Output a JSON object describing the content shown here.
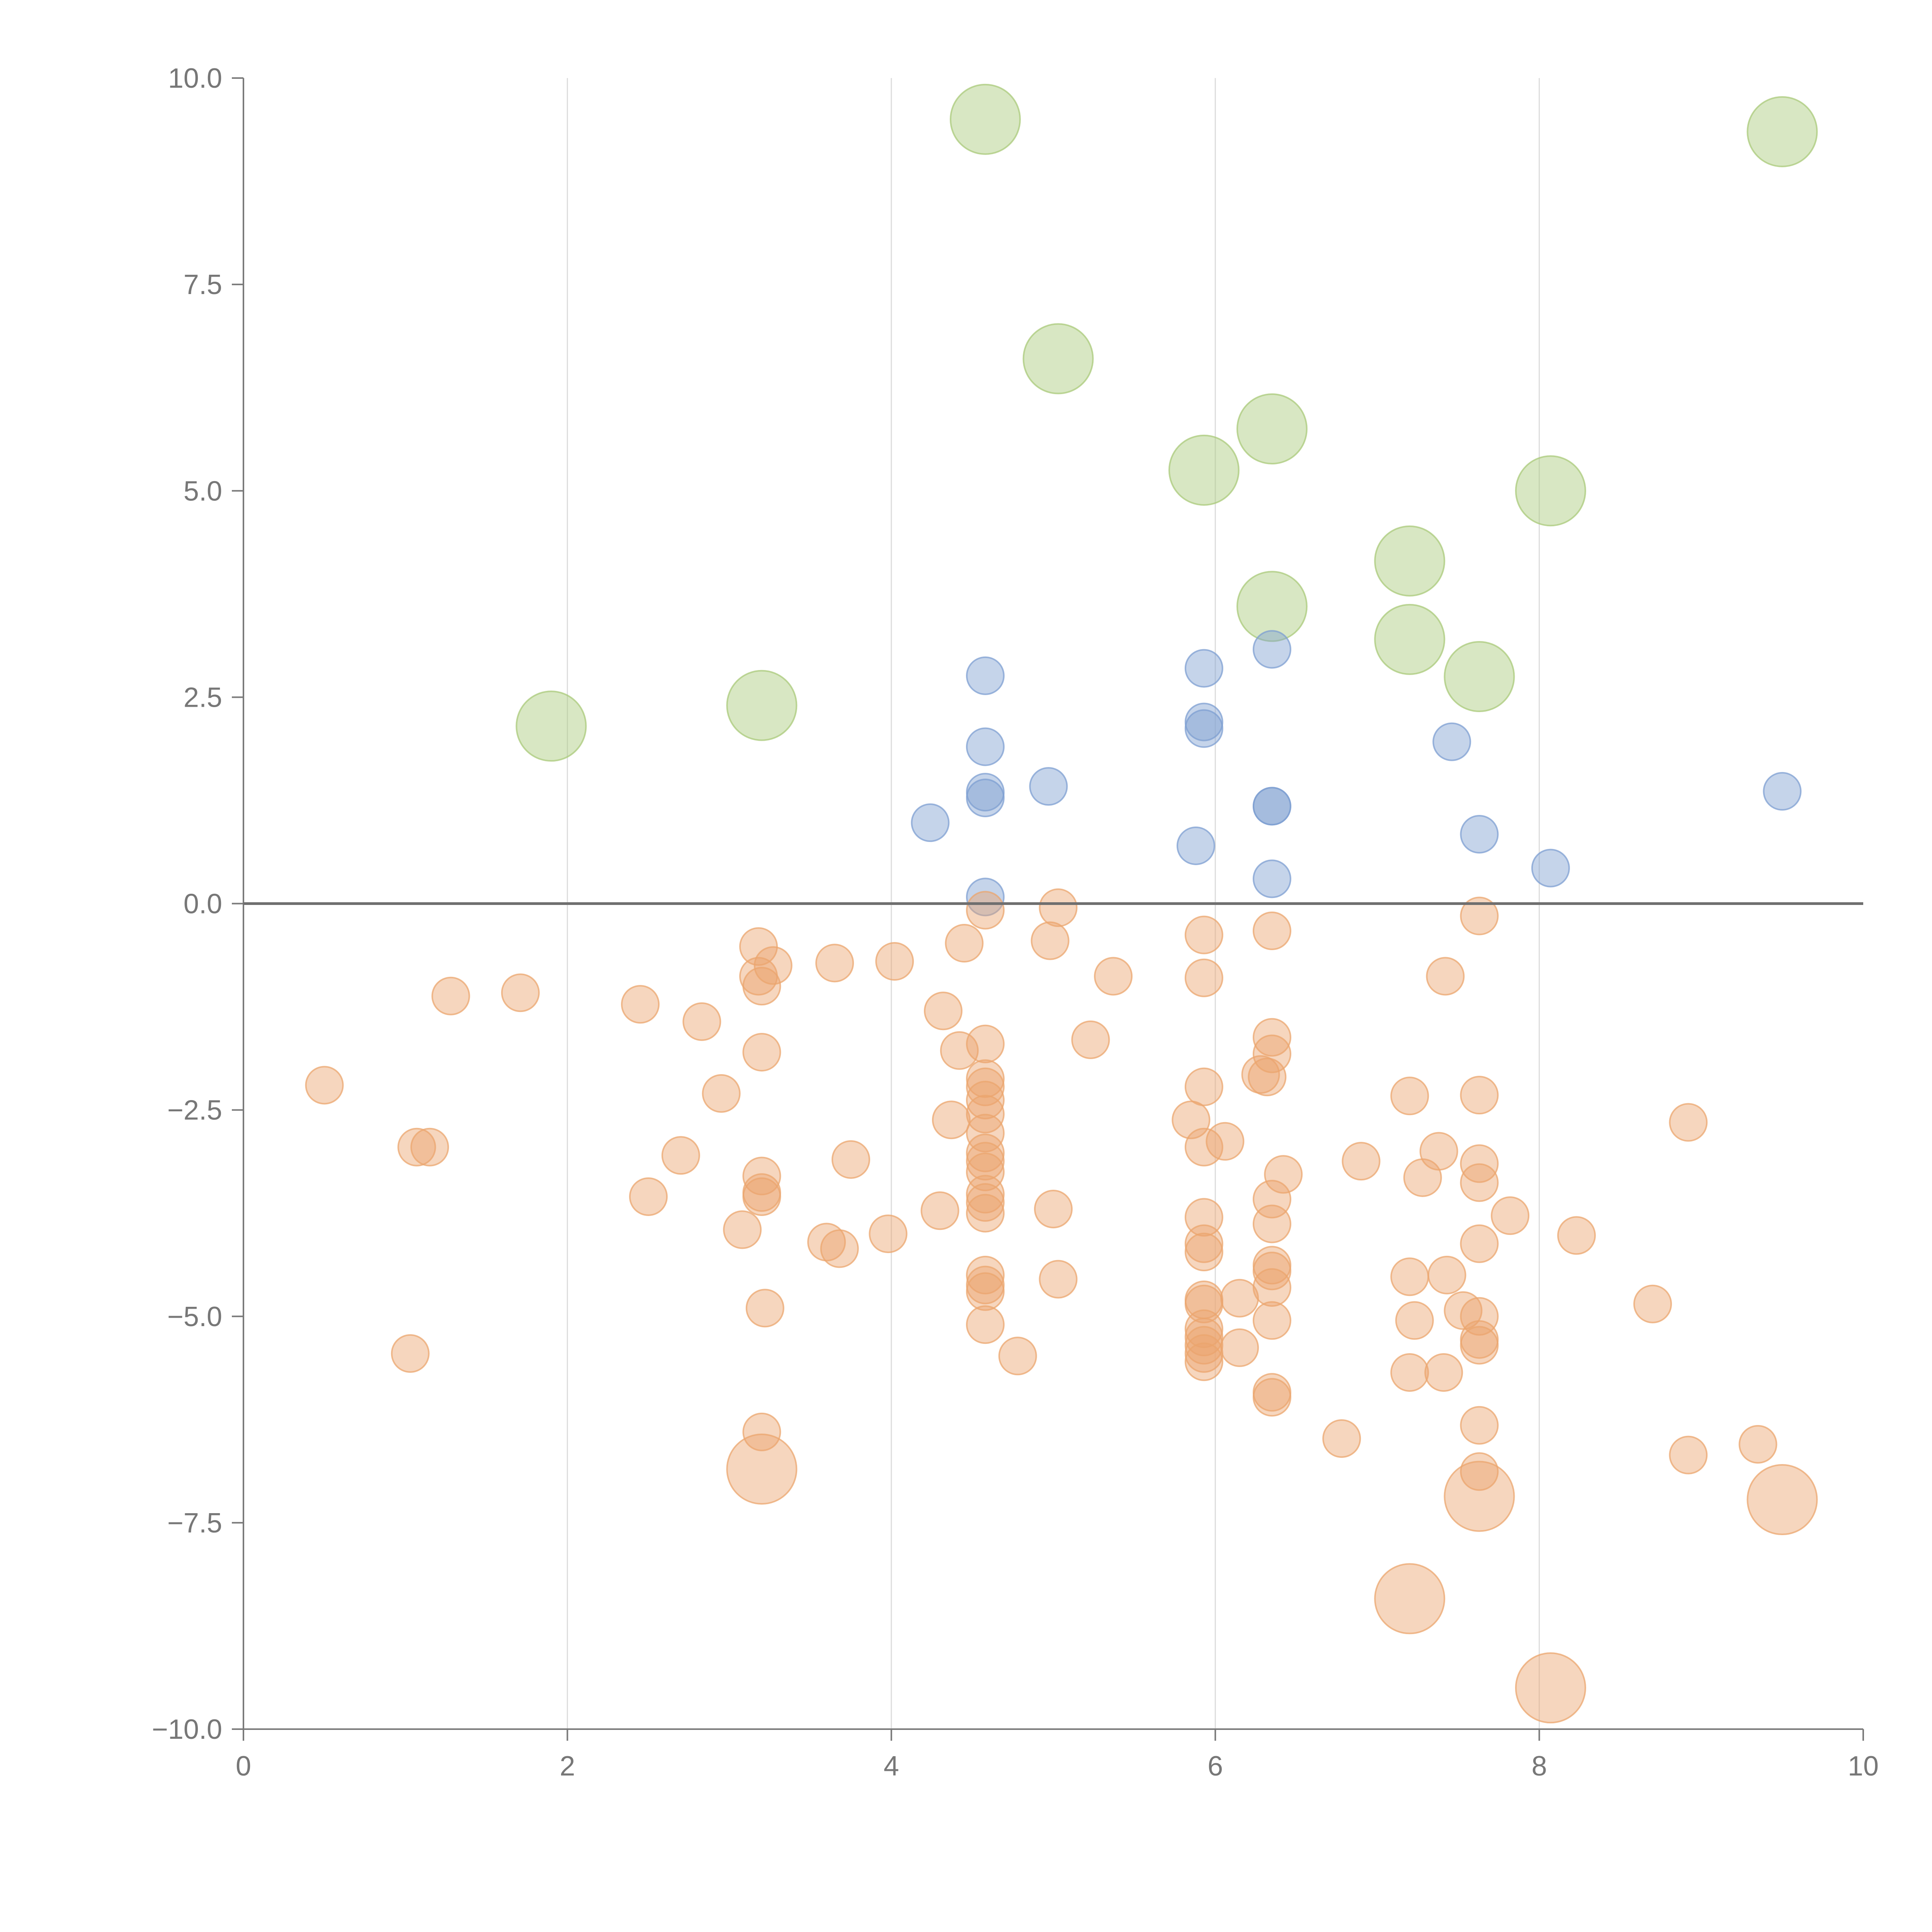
{
  "chart_data": {
    "type": "scatter",
    "title": "",
    "xlabel": "",
    "ylabel": "",
    "xlim": [
      0,
      10
    ],
    "ylim": [
      -10,
      10
    ],
    "x_ticks": [
      0,
      2,
      4,
      6,
      8,
      10
    ],
    "x_tick_labels": [
      "0",
      "2",
      "4",
      "6",
      "8",
      "10"
    ],
    "y_ticks": [
      10,
      7.5,
      5,
      2.5,
      0,
      -2.5,
      -5,
      -7.5,
      -10
    ],
    "y_tick_labels": [
      "10.0",
      "7.5",
      "5.0",
      "2.5",
      "0.0",
      "−2.5",
      "−5.0",
      "−7.5",
      "−10.0"
    ],
    "vertical_gridlines": [
      2,
      4,
      6,
      8
    ],
    "reference_line_y": 0,
    "legend": "none",
    "series": [
      {
        "name": "green",
        "color": "#a9c97a",
        "size": "large",
        "points": [
          [
            1.9,
            2.15
          ],
          [
            3.2,
            2.4
          ],
          [
            4.58,
            9.5
          ],
          [
            5.03,
            6.6
          ],
          [
            5.93,
            5.25
          ],
          [
            6.35,
            5.75
          ],
          [
            6.35,
            3.6
          ],
          [
            7.2,
            4.15
          ],
          [
            7.2,
            3.2
          ],
          [
            7.63,
            2.75
          ],
          [
            8.07,
            5.0
          ],
          [
            9.5,
            9.35
          ]
        ]
      },
      {
        "name": "blue",
        "color": "#7e9fd1",
        "size": "medium",
        "points": [
          [
            4.24,
            0.98
          ],
          [
            4.58,
            2.76
          ],
          [
            4.58,
            1.9
          ],
          [
            4.58,
            1.35
          ],
          [
            4.58,
            1.28
          ],
          [
            4.58,
            0.08
          ],
          [
            4.97,
            1.42
          ],
          [
            5.88,
            0.7
          ],
          [
            5.93,
            2.85
          ],
          [
            5.93,
            2.2
          ],
          [
            5.93,
            2.12
          ],
          [
            6.35,
            3.08
          ],
          [
            6.35,
            1.18
          ],
          [
            6.35,
            1.18
          ],
          [
            6.35,
            0.3
          ],
          [
            7.46,
            1.96
          ],
          [
            7.63,
            0.84
          ],
          [
            8.07,
            0.43
          ],
          [
            9.5,
            1.36
          ]
        ]
      },
      {
        "name": "orange",
        "color": "#eba56e",
        "size": "medium",
        "points": [
          [
            0.5,
            -2.2
          ],
          [
            1.03,
            -5.45
          ],
          [
            1.07,
            -2.95
          ],
          [
            1.15,
            -2.95
          ],
          [
            1.28,
            -1.12
          ],
          [
            1.71,
            -1.08
          ],
          [
            2.45,
            -1.22
          ],
          [
            2.5,
            -3.55
          ],
          [
            2.7,
            -3.05
          ],
          [
            2.83,
            -1.43
          ],
          [
            2.95,
            -2.3
          ],
          [
            3.08,
            -3.95
          ],
          [
            3.18,
            -0.52
          ],
          [
            3.18,
            -0.88
          ],
          [
            3.2,
            -1.0
          ],
          [
            3.2,
            -1.8
          ],
          [
            3.2,
            -3.3
          ],
          [
            3.2,
            -3.55
          ],
          [
            3.22,
            -4.9
          ],
          [
            3.2,
            -6.4
          ],
          [
            3.27,
            -0.75
          ],
          [
            3.2,
            -3.5
          ],
          [
            3.6,
            -4.1
          ],
          [
            3.65,
            -0.72
          ],
          [
            3.68,
            -4.18
          ],
          [
            3.75,
            -3.1
          ],
          [
            3.98,
            -4.0
          ],
          [
            4.02,
            -0.7
          ],
          [
            4.3,
            -3.72
          ],
          [
            4.32,
            -1.3
          ],
          [
            4.37,
            -2.62
          ],
          [
            4.42,
            -1.78
          ],
          [
            4.45,
            -0.48
          ],
          [
            4.58,
            -0.08
          ],
          [
            4.58,
            -1.7
          ],
          [
            4.58,
            -2.12
          ],
          [
            4.58,
            -2.22
          ],
          [
            4.58,
            -2.38
          ],
          [
            4.58,
            -2.55
          ],
          [
            4.58,
            -2.78
          ],
          [
            4.58,
            -3.02
          ],
          [
            4.58,
            -3.12
          ],
          [
            4.58,
            -3.25
          ],
          [
            4.58,
            -3.52
          ],
          [
            4.58,
            -3.62
          ],
          [
            4.58,
            -3.75
          ],
          [
            4.58,
            -4.5
          ],
          [
            4.58,
            -4.62
          ],
          [
            4.58,
            -4.7
          ],
          [
            4.58,
            -5.1
          ],
          [
            4.78,
            -5.48
          ],
          [
            4.98,
            -0.45
          ],
          [
            5.0,
            -3.7
          ],
          [
            5.03,
            -0.05
          ],
          [
            5.03,
            -4.55
          ],
          [
            5.23,
            -1.65
          ],
          [
            5.37,
            -0.88
          ],
          [
            5.85,
            -2.62
          ],
          [
            5.93,
            -0.38
          ],
          [
            5.93,
            -0.9
          ],
          [
            5.93,
            -2.22
          ],
          [
            5.93,
            -2.95
          ],
          [
            5.93,
            -3.8
          ],
          [
            5.93,
            -4.12
          ],
          [
            5.93,
            -4.22
          ],
          [
            5.93,
            -4.8
          ],
          [
            5.93,
            -4.85
          ],
          [
            5.93,
            -5.15
          ],
          [
            5.93,
            -5.25
          ],
          [
            5.93,
            -5.35
          ],
          [
            5.93,
            -5.45
          ],
          [
            5.93,
            -5.55
          ],
          [
            6.06,
            -2.88
          ],
          [
            6.15,
            -4.78
          ],
          [
            6.15,
            -5.38
          ],
          [
            6.28,
            -2.07
          ],
          [
            6.32,
            -2.1
          ],
          [
            6.35,
            -0.33
          ],
          [
            6.35,
            -1.62
          ],
          [
            6.35,
            -1.82
          ],
          [
            6.35,
            -3.58
          ],
          [
            6.35,
            -3.88
          ],
          [
            6.35,
            -4.38
          ],
          [
            6.35,
            -4.45
          ],
          [
            6.35,
            -4.65
          ],
          [
            6.35,
            -5.05
          ],
          [
            6.35,
            -5.92
          ],
          [
            6.35,
            -5.98
          ],
          [
            6.42,
            -3.28
          ],
          [
            6.78,
            -6.48
          ],
          [
            6.9,
            -3.12
          ],
          [
            7.2,
            -2.33
          ],
          [
            7.2,
            -4.52
          ],
          [
            7.2,
            -5.68
          ],
          [
            7.23,
            -5.05
          ],
          [
            7.28,
            -3.32
          ],
          [
            7.38,
            -3.0
          ],
          [
            7.41,
            -5.68
          ],
          [
            7.42,
            -0.88
          ],
          [
            7.43,
            -4.5
          ],
          [
            7.53,
            -4.93
          ],
          [
            7.63,
            -0.15
          ],
          [
            7.63,
            -2.32
          ],
          [
            7.63,
            -3.15
          ],
          [
            7.63,
            -3.38
          ],
          [
            7.63,
            -4.12
          ],
          [
            7.63,
            -5.0
          ],
          [
            7.63,
            -5.28
          ],
          [
            7.63,
            -5.35
          ],
          [
            7.63,
            -6.32
          ],
          [
            7.63,
            -6.88
          ],
          [
            7.82,
            -3.78
          ],
          [
            8.23,
            -4.02
          ],
          [
            8.7,
            -4.85
          ],
          [
            8.92,
            -2.65
          ],
          [
            8.92,
            -6.68
          ],
          [
            9.35,
            -6.55
          ]
        ]
      },
      {
        "name": "orange-large",
        "color": "#eba56e",
        "size": "large",
        "points": [
          [
            3.2,
            -6.85
          ],
          [
            7.2,
            -8.42
          ],
          [
            7.63,
            -7.18
          ],
          [
            8.07,
            -9.5
          ],
          [
            9.5,
            -7.22
          ]
        ]
      }
    ]
  }
}
